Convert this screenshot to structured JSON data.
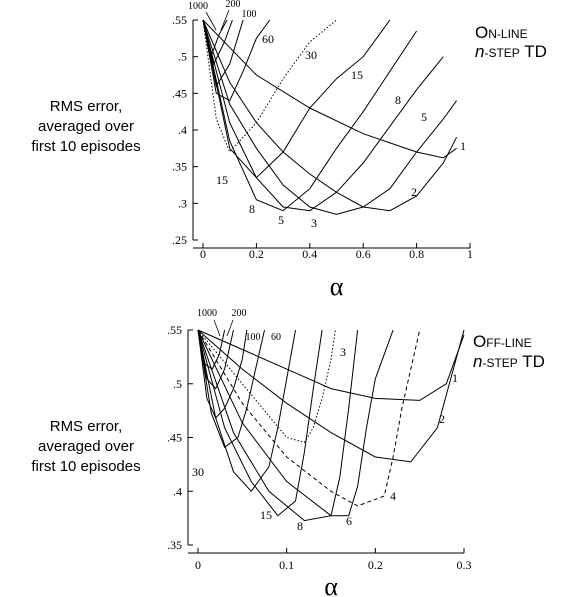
{
  "chart_data": [
    {
      "type": "line",
      "title": "On-line n-step TD",
      "title_parts": {
        "line1_big": "O",
        "line1_small": "N-LINE",
        "line2_italic": "n",
        "line2_small": "-STEP",
        "line2_rest": " TD"
      },
      "xlabel": "α",
      "ylabel_lines": [
        "RMS error,",
        "averaged over",
        "first 10 episodes"
      ],
      "xlim": [
        0,
        1
      ],
      "ylim": [
        0.25,
        0.55
      ],
      "xticks": [
        "0",
        "0.2",
        "0.4",
        "0.6",
        "0.8",
        "1"
      ],
      "yticks": [
        ".25",
        ".3",
        ".35",
        ".4",
        ".45",
        ".5",
        ".55"
      ],
      "grid": false,
      "series": [
        {
          "name": "1",
          "style": "solid",
          "x": [
            0,
            0.2,
            0.4,
            0.6,
            0.8,
            0.9,
            0.95
          ],
          "y": [
            0.55,
            0.475,
            0.43,
            0.395,
            0.37,
            0.362,
            0.375
          ]
        },
        {
          "name": "2",
          "style": "solid",
          "x": [
            0,
            0.1,
            0.2,
            0.3,
            0.4,
            0.5,
            0.6,
            0.7,
            0.8,
            0.9,
            0.95
          ],
          "y": [
            0.55,
            0.465,
            0.41,
            0.37,
            0.34,
            0.315,
            0.295,
            0.29,
            0.31,
            0.355,
            0.39
          ]
        },
        {
          "name": "3",
          "style": "solid",
          "x": [
            0,
            0.1,
            0.2,
            0.3,
            0.4,
            0.5,
            0.6,
            0.7,
            0.8,
            0.9,
            0.95
          ],
          "y": [
            0.55,
            0.435,
            0.375,
            0.325,
            0.295,
            0.285,
            0.295,
            0.32,
            0.37,
            0.415,
            0.44
          ]
        },
        {
          "name": "5",
          "style": "solid",
          "x": [
            0,
            0.1,
            0.2,
            0.3,
            0.4,
            0.5,
            0.6,
            0.7,
            0.8,
            0.9
          ],
          "y": [
            0.55,
            0.41,
            0.335,
            0.295,
            0.29,
            0.315,
            0.355,
            0.405,
            0.455,
            0.5
          ]
        },
        {
          "name": "8",
          "style": "solid",
          "x": [
            0,
            0.1,
            0.2,
            0.3,
            0.4,
            0.5,
            0.6,
            0.7,
            0.8
          ],
          "y": [
            0.55,
            0.385,
            0.305,
            0.29,
            0.32,
            0.375,
            0.425,
            0.48,
            0.535
          ]
        },
        {
          "name": "15",
          "style": "solid",
          "x": [
            0,
            0.1,
            0.2,
            0.3,
            0.4,
            0.5,
            0.6,
            0.7
          ],
          "y": [
            0.55,
            0.375,
            0.335,
            0.37,
            0.43,
            0.47,
            0.5,
            0.55
          ]
        },
        {
          "name": "30",
          "style": "dotted",
          "x": [
            0,
            0.05,
            0.1,
            0.2,
            0.3,
            0.4,
            0.5
          ],
          "y": [
            0.55,
            0.415,
            0.37,
            0.41,
            0.47,
            0.52,
            0.55
          ]
        },
        {
          "name": "60",
          "style": "solid",
          "x": [
            0,
            0.05,
            0.1,
            0.15,
            0.2,
            0.25
          ],
          "y": [
            0.55,
            0.45,
            0.44,
            0.48,
            0.525,
            0.55
          ]
        },
        {
          "name": "100",
          "style": "solid",
          "x": [
            0,
            0.05,
            0.1,
            0.15
          ],
          "y": [
            0.55,
            0.46,
            0.49,
            0.55
          ]
        },
        {
          "name": "200",
          "style": "solid",
          "x": [
            0,
            0.04,
            0.08,
            0.11
          ],
          "y": [
            0.55,
            0.49,
            0.52,
            0.55
          ]
        },
        {
          "name": "1000",
          "style": "solid",
          "x": [
            0,
            0.03,
            0.06,
            0.09
          ],
          "y": [
            0.55,
            0.5,
            0.53,
            0.55
          ]
        }
      ],
      "labels": [
        "1000",
        "200",
        "100",
        "60",
        "30",
        "15",
        "8",
        "5",
        "3",
        "2",
        "1",
        "15",
        "8",
        "5"
      ]
    },
    {
      "type": "line",
      "title": "Off-line n-step TD",
      "title_parts": {
        "line1_big": "O",
        "line1_small": "FF-LINE",
        "line2_italic": "n",
        "line2_small": "-STEP",
        "line2_rest": " TD"
      },
      "xlabel": "α",
      "ylabel_lines": [
        "RMS error,",
        "averaged over",
        "first 10 episodes"
      ],
      "xlim": [
        0,
        0.3
      ],
      "ylim": [
        0.33,
        0.55
      ],
      "xticks": [
        "0",
        "0.1",
        "0.2",
        "0.3"
      ],
      "yticks": [
        ".35",
        ".4",
        ".45",
        ".5",
        ".55"
      ],
      "grid": false,
      "series": [
        {
          "name": "1",
          "style": "solid",
          "x": [
            0,
            0.05,
            0.1,
            0.15,
            0.2,
            0.25,
            0.28,
            0.3
          ],
          "y": [
            0.55,
            0.53,
            0.51,
            0.49,
            0.48,
            0.478,
            0.495,
            0.545
          ]
        },
        {
          "name": "2",
          "style": "solid",
          "x": [
            0,
            0.05,
            0.1,
            0.15,
            0.2,
            0.24,
            0.27,
            0.3
          ],
          "y": [
            0.55,
            0.51,
            0.475,
            0.445,
            0.42,
            0.415,
            0.45,
            0.55
          ]
        },
        {
          "name": "4",
          "style": "dashed",
          "x": [
            0,
            0.05,
            0.1,
            0.15,
            0.18,
            0.21,
            0.22,
            0.23,
            0.25
          ],
          "y": [
            0.55,
            0.475,
            0.42,
            0.385,
            0.37,
            0.38,
            0.42,
            0.47,
            0.55
          ]
        },
        {
          "name": "6",
          "style": "solid",
          "x": [
            0,
            0.05,
            0.1,
            0.15,
            0.17,
            0.18,
            0.19,
            0.2,
            0.22
          ],
          "y": [
            0.55,
            0.455,
            0.395,
            0.36,
            0.36,
            0.39,
            0.45,
            0.5,
            0.55
          ]
        },
        {
          "name": "8",
          "style": "solid",
          "x": [
            0,
            0.04,
            0.08,
            0.12,
            0.15,
            0.16,
            0.17,
            0.18
          ],
          "y": [
            0.55,
            0.445,
            0.385,
            0.355,
            0.36,
            0.4,
            0.47,
            0.55
          ]
        },
        {
          "name": "15",
          "style": "solid",
          "x": [
            0,
            0.03,
            0.06,
            0.09,
            0.11,
            0.12,
            0.13,
            0.14
          ],
          "y": [
            0.55,
            0.45,
            0.395,
            0.36,
            0.375,
            0.425,
            0.49,
            0.55
          ]
        },
        {
          "name": "3",
          "style": "dotted",
          "x": [
            0,
            0.05,
            0.1,
            0.12,
            0.13,
            0.14,
            0.15,
            0.155
          ],
          "y": [
            0.55,
            0.495,
            0.44,
            0.435,
            0.45,
            0.48,
            0.52,
            0.55
          ]
        },
        {
          "name": "30",
          "style": "solid",
          "x": [
            0,
            0.02,
            0.04,
            0.06,
            0.08,
            0.09,
            0.1,
            0.11
          ],
          "y": [
            0.55,
            0.46,
            0.405,
            0.385,
            0.41,
            0.45,
            0.5,
            0.55
          ]
        },
        {
          "name": "60",
          "style": "solid",
          "x": [
            0,
            0.015,
            0.03,
            0.045,
            0.055,
            0.065,
            0.075
          ],
          "y": [
            0.55,
            0.465,
            0.43,
            0.44,
            0.47,
            0.51,
            0.55
          ]
        },
        {
          "name": "100",
          "style": "solid",
          "x": [
            0,
            0.01,
            0.02,
            0.03,
            0.04,
            0.05,
            0.055
          ],
          "y": [
            0.55,
            0.48,
            0.46,
            0.47,
            0.49,
            0.52,
            0.55
          ]
        },
        {
          "name": "200",
          "style": "solid",
          "x": [
            0,
            0.01,
            0.02,
            0.03,
            0.04
          ],
          "y": [
            0.55,
            0.5,
            0.49,
            0.51,
            0.55
          ]
        },
        {
          "name": "1000",
          "style": "solid",
          "x": [
            0,
            0.008,
            0.016,
            0.024,
            0.03
          ],
          "y": [
            0.55,
            0.515,
            0.51,
            0.525,
            0.55
          ]
        }
      ],
      "labels": [
        "1000",
        "200",
        "100",
        "60",
        "3",
        "1",
        "2",
        "30",
        "15",
        "8",
        "6",
        "4"
      ]
    }
  ]
}
